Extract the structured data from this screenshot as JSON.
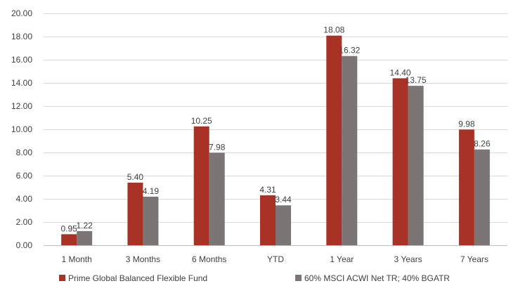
{
  "chart_data": {
    "type": "bar",
    "categories": [
      "1 Month",
      "3 Months",
      "6 Months",
      "YTD",
      "1 Year",
      "3 Years",
      "7 Years"
    ],
    "series": [
      {
        "name": "Prime Global Balanced Flexible Fund",
        "values": [
          0.95,
          5.4,
          10.25,
          4.31,
          18.08,
          14.4,
          9.98
        ],
        "labels": [
          "0.95",
          "5.40",
          "10.25",
          "4.31",
          "18.08",
          "14.40",
          "9.98"
        ],
        "color": "#A93226"
      },
      {
        "name": "60% MSCI ACWI Net TR; 40% BGATR",
        "values": [
          1.22,
          4.19,
          7.98,
          3.44,
          16.32,
          13.75,
          8.26
        ],
        "labels": [
          "1.22",
          "4.19",
          "7.98",
          "3.44",
          "16.32",
          "13.75",
          "8.26"
        ],
        "color": "#7B7575"
      }
    ],
    "ylim": [
      0,
      20
    ],
    "yticks": [
      "0.00",
      "2.00",
      "4.00",
      "6.00",
      "8.00",
      "10.00",
      "12.00",
      "14.00",
      "16.00",
      "18.00",
      "20.00"
    ],
    "grid": true,
    "legend_position": "bottom-left",
    "title": "",
    "xlabel": "",
    "ylabel": ""
  }
}
